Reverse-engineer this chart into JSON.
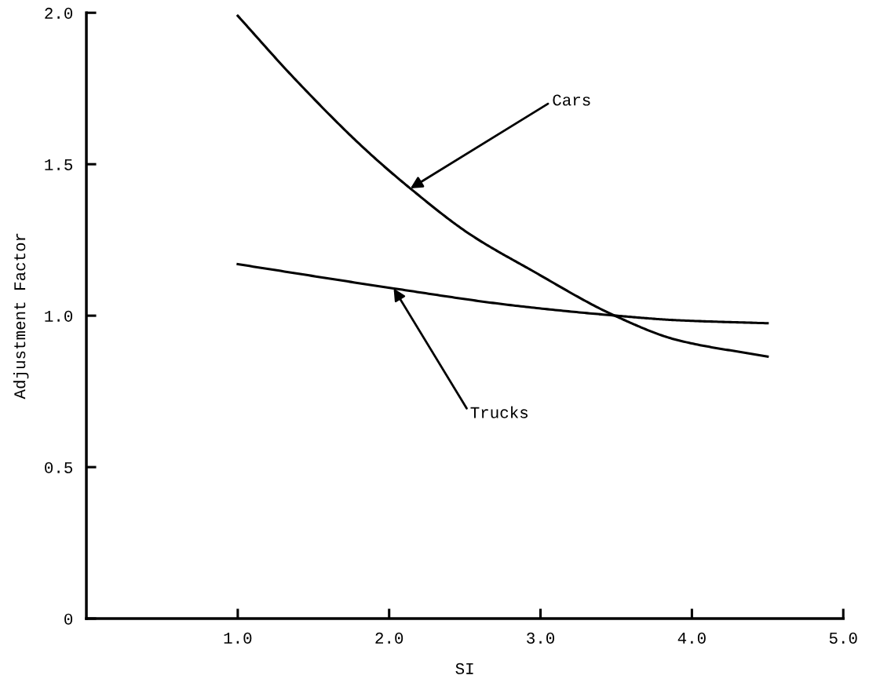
{
  "chart_data": {
    "type": "line",
    "xlabel": "SI",
    "ylabel": "Adjustment Factor",
    "xlim": [
      0,
      5
    ],
    "ylim": [
      0,
      2
    ],
    "xticks": [
      {
        "value": 1,
        "label": "1.0"
      },
      {
        "value": 2,
        "label": "2.0"
      },
      {
        "value": 3,
        "label": "3.0"
      },
      {
        "value": 4,
        "label": "4.0"
      },
      {
        "value": 5,
        "label": "5.0"
      }
    ],
    "yticks": [
      0,
      {
        "value": 0.5,
        "label": "0.5"
      },
      {
        "value": 1,
        "label": "1.0"
      },
      {
        "value": 1.5,
        "label": "1.5"
      },
      {
        "value": 2,
        "label": "2.0"
      }
    ],
    "grid": false,
    "marker": "none",
    "line_style": "solid",
    "series": [
      {
        "color": "#000000",
        "x": [
          1.0,
          1.38,
          1.84,
          2.14,
          2.53,
          2.94,
          3.49,
          3.9,
          4.5
        ],
        "values": [
          1.99,
          1.78,
          1.55,
          1.42,
          1.27,
          1.15,
          1.0,
          0.92,
          0.865
        ]
      },
      {
        "color": "#000000",
        "x": [
          1.0,
          2.03,
          2.8,
          3.5,
          3.9,
          4.5
        ],
        "values": [
          1.17,
          1.09,
          1.035,
          1.0,
          0.985,
          0.975
        ]
      }
    ],
    "annotations": [
      {
        "text": "Cars",
        "x": 2.14,
        "y": 1.42
      },
      {
        "text": "Trucks",
        "x": 2.03,
        "y": 1.09
      }
    ]
  }
}
